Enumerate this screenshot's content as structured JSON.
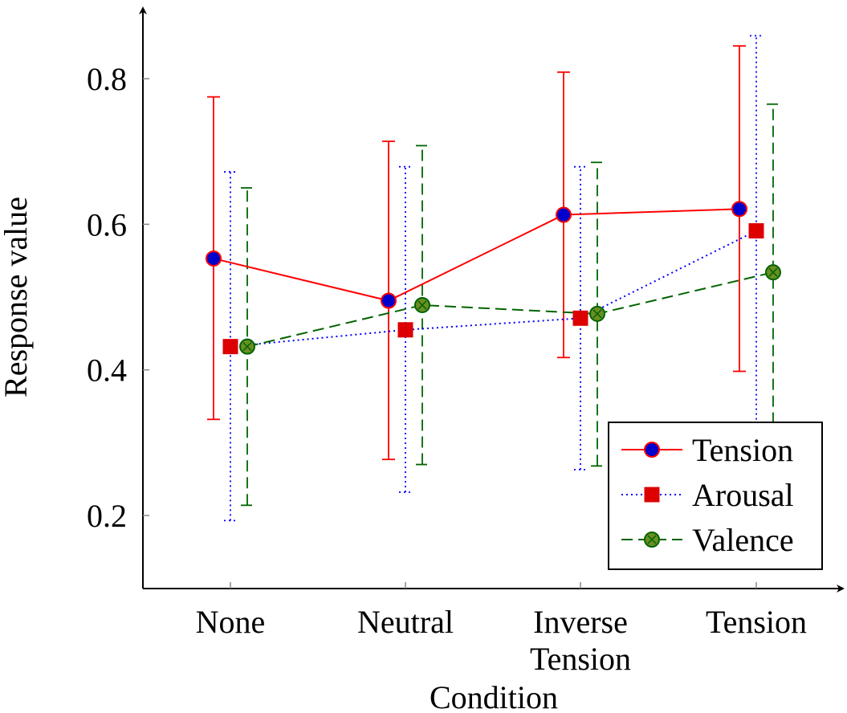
{
  "chart_data": {
    "type": "line",
    "title": "",
    "xlabel": "Condition",
    "ylabel": "Response value",
    "categories": [
      "None",
      "Neutral",
      "Inverse Tension",
      "Tension"
    ],
    "category_lines": [
      [
        "None"
      ],
      [
        "Neutral"
      ],
      [
        "Inverse",
        "Tension"
      ],
      [
        "Tension"
      ]
    ],
    "ylim": [
      0.1,
      0.9
    ],
    "yticks": [
      0.2,
      0.4,
      0.6,
      0.8
    ],
    "ytick_labels": [
      "0.2",
      "0.4",
      "0.6",
      "0.8"
    ],
    "grid": false,
    "legend_position": "bottom-right",
    "series": [
      {
        "name": "Tension",
        "color": "#ff0000",
        "marker": "circle",
        "marker_fill": "#0000cc",
        "line_style": "solid",
        "values": [
          0.553,
          0.495,
          0.613,
          0.621
        ],
        "err_low": [
          0.332,
          0.277,
          0.417,
          0.398
        ],
        "err_high": [
          0.775,
          0.714,
          0.809,
          0.845
        ]
      },
      {
        "name": "Arousal",
        "color": "#0000ff",
        "marker": "square",
        "marker_fill": "#dd0000",
        "line_style": "dotted",
        "values": [
          0.432,
          0.455,
          0.471,
          0.591
        ],
        "err_low": [
          0.193,
          0.232,
          0.263,
          0.325
        ],
        "err_high": [
          0.672,
          0.679,
          0.679,
          0.859
        ]
      },
      {
        "name": "Valence",
        "color": "#006400",
        "marker": "circle-x",
        "marker_fill": "#6b8e23",
        "line_style": "dashed",
        "values": [
          0.432,
          0.489,
          0.477,
          0.534
        ],
        "err_low": [
          0.214,
          0.27,
          0.268,
          0.303
        ],
        "err_high": [
          0.65,
          0.708,
          0.685,
          0.765
        ]
      }
    ]
  }
}
